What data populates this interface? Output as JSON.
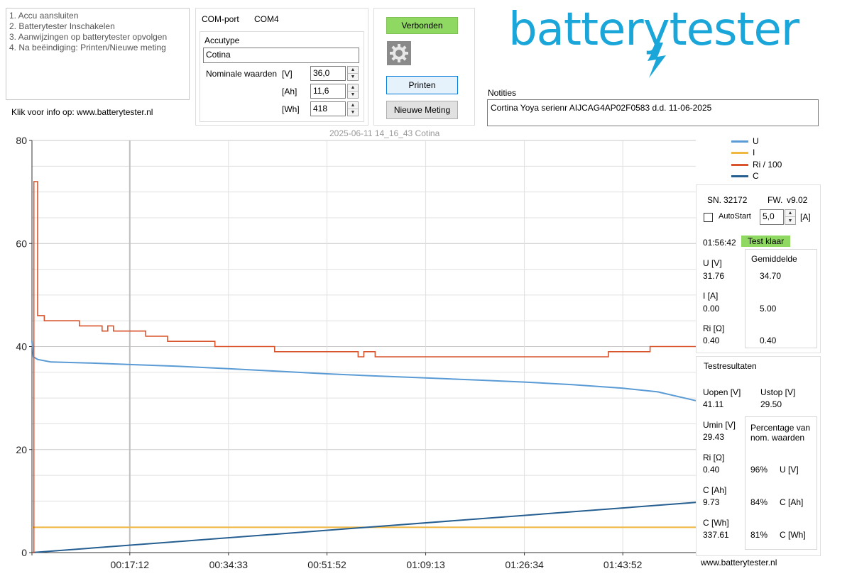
{
  "steps": [
    "1. Accu aansluiten",
    "2. Batterytester Inschakelen",
    "3. Aanwijzingen op batterytester opvolgen",
    "4. Na beëindiging: Printen/Nieuwe meting"
  ],
  "info_link": "Klik voor info op: www.batterytester.nl",
  "com": {
    "label": "COM-port",
    "value": "COM4"
  },
  "accutype": {
    "label": "Accutype",
    "value": "Cotina"
  },
  "nominal": {
    "label": "Nominale waarden",
    "rows": [
      {
        "unit": "[V]",
        "value": "36,0"
      },
      {
        "unit": "[Ah]",
        "value": "11,6"
      },
      {
        "unit": "[Wh]",
        "value": "418"
      }
    ]
  },
  "buttons": {
    "status": "Verbonden",
    "print": "Printen",
    "new": "Nieuwe Meting"
  },
  "colors": {
    "status_green": "#8fd862",
    "U": "#5b9bd5",
    "I": "#f0b840",
    "Ri": "#d9532c",
    "C": "#255e91",
    "logo": "#1aa6d8"
  },
  "logo": "batterytester",
  "notes": {
    "label": "Notities",
    "value": "Cortina Yoya serienr AIJCAG4AP02F0583 d.d. 11-06-2025"
  },
  "chart_title": "2025-06-11 14_16_43 Cotina",
  "device": {
    "sn_label": "SN.",
    "sn": "32172",
    "fw_label": "FW.",
    "fw": "v9.02",
    "autostart_label": "AutoStart",
    "current_value": "5,0",
    "current_unit": "[A]",
    "time": "01:56:42",
    "status": "Test klaar",
    "avg_label": "Gemiddelde",
    "u_label": "U [V]",
    "u": "31.76",
    "u_avg": "34.70",
    "i_label": "I [A]",
    "i": "0.00",
    "i_avg": "5.00",
    "ri_label": "Ri [Ω]",
    "ri": "0.40",
    "ri_avg": "0.40"
  },
  "results": {
    "title": "Testresultaten",
    "uopen_label": "Uopen [V]",
    "uopen": "41.11",
    "ustop_label": "Ustop [V]",
    "ustop": "29.50",
    "umin_label": "Umin [V]",
    "umin": "29.43",
    "pct_title": "Percentage van nom. waarden",
    "ri_label": "Ri [Ω]",
    "ri": "0.40",
    "ri_pct": "96%",
    "ri_pct_unit": "U [V]",
    "cah_label": "C [Ah]",
    "cah": "9.73",
    "cah_pct": "84%",
    "cah_pct_unit": "C [Ah]",
    "cwh_label": "C [Wh]",
    "cwh": "337.61",
    "cwh_pct": "81%",
    "cwh_pct_unit": "C [Wh]"
  },
  "footer": "www.batterytester.nl",
  "chart_data": {
    "type": "line",
    "title": "2025-06-11 14_16_43 Cotina",
    "xlabel": "",
    "ylabel": "",
    "x_unit": "seconds",
    "xlim": [
      0,
      7002
    ],
    "ylim": [
      0,
      80
    ],
    "yticks": [
      0,
      20,
      40,
      60,
      80
    ],
    "xticks": [
      {
        "t": 1032,
        "label": "00:17:12"
      },
      {
        "t": 2073,
        "label": "00:34:33"
      },
      {
        "t": 3112,
        "label": "00:51:52"
      },
      {
        "t": 4153,
        "label": "01:09:13"
      },
      {
        "t": 5194,
        "label": "01:26:34"
      },
      {
        "t": 6232,
        "label": "01:43:52"
      }
    ],
    "grid": true,
    "legend": "top-right",
    "series": [
      {
        "name": "U",
        "color": "#5b9bd5",
        "points": [
          [
            0,
            41.1
          ],
          [
            15,
            38.0
          ],
          [
            60,
            37.5
          ],
          [
            200,
            37.0
          ],
          [
            600,
            36.8
          ],
          [
            1032,
            36.5
          ],
          [
            1500,
            36.2
          ],
          [
            2073,
            35.7
          ],
          [
            2600,
            35.2
          ],
          [
            3112,
            34.7
          ],
          [
            3600,
            34.3
          ],
          [
            4153,
            33.9
          ],
          [
            4700,
            33.5
          ],
          [
            5194,
            33.1
          ],
          [
            5700,
            32.6
          ],
          [
            6232,
            31.9
          ],
          [
            6600,
            31.2
          ],
          [
            7002,
            29.5
          ]
        ]
      },
      {
        "name": "I",
        "color": "#f0b840",
        "points": [
          [
            0,
            4.9
          ],
          [
            7002,
            4.9
          ]
        ]
      },
      {
        "name": "Ri / 100",
        "color": "#d9532c",
        "points": [
          [
            0,
            0
          ],
          [
            20,
            0
          ],
          [
            20,
            72
          ],
          [
            60,
            72
          ],
          [
            60,
            46
          ],
          [
            130,
            46
          ],
          [
            130,
            45
          ],
          [
            500,
            45
          ],
          [
            500,
            44
          ],
          [
            740,
            44
          ],
          [
            740,
            43
          ],
          [
            800,
            43
          ],
          [
            800,
            44
          ],
          [
            860,
            44
          ],
          [
            860,
            43
          ],
          [
            1200,
            43
          ],
          [
            1200,
            42
          ],
          [
            1430,
            42
          ],
          [
            1430,
            41
          ],
          [
            1930,
            41
          ],
          [
            1930,
            40
          ],
          [
            2560,
            40
          ],
          [
            2560,
            39
          ],
          [
            3440,
            39
          ],
          [
            3440,
            38
          ],
          [
            3500,
            38
          ],
          [
            3500,
            39
          ],
          [
            3620,
            39
          ],
          [
            3620,
            38
          ],
          [
            6080,
            38
          ],
          [
            6080,
            39
          ],
          [
            6520,
            39
          ],
          [
            6520,
            40
          ],
          [
            7002,
            40
          ]
        ]
      },
      {
        "name": "C",
        "color": "#255e91",
        "points": [
          [
            0,
            0
          ],
          [
            7002,
            9.73
          ]
        ]
      }
    ]
  }
}
